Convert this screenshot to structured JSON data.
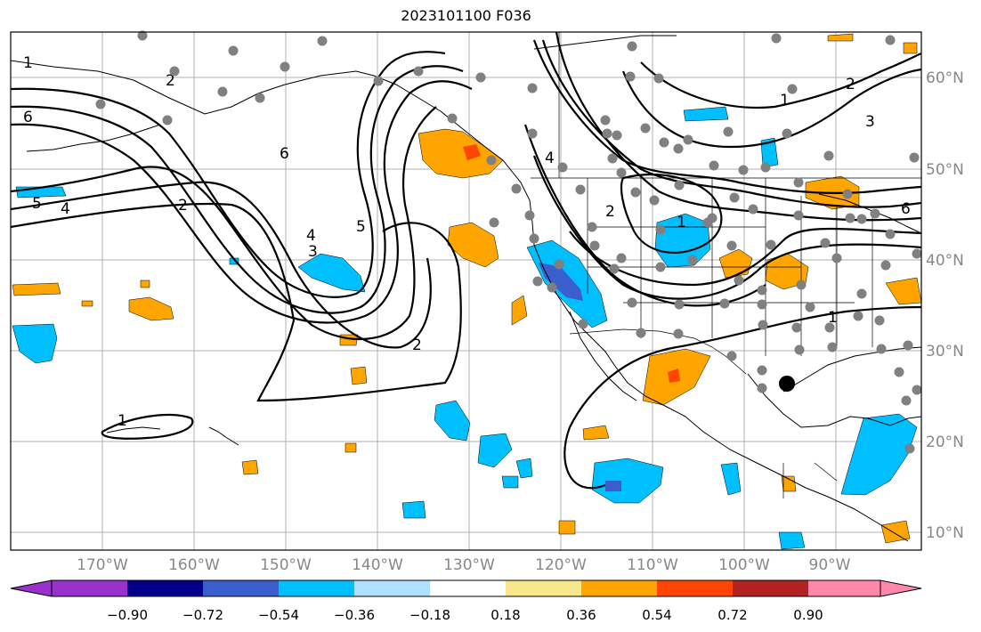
{
  "title": "2023101100 F036",
  "lon_labels": [
    "170°W",
    "160°W",
    "150°W",
    "140°W",
    "130°W",
    "120°W",
    "110°W",
    "100°W",
    "90°W"
  ],
  "lat_labels": [
    "60°N",
    "50°N",
    "40°N",
    "30°N",
    "20°N",
    "10°N"
  ],
  "colorbar": {
    "colors": [
      "#9932cc",
      "#00008b",
      "#3a5fcd",
      "#00bfff",
      "#b0e0ff",
      "#ffffff",
      "#f8e68a",
      "#ffa500",
      "#ff4500",
      "#b22222",
      "#ff88aa"
    ],
    "tick_labels": [
      "−0.90",
      "−0.72",
      "−0.54",
      "−0.36",
      "−0.18",
      "0.18",
      "0.36",
      "0.54",
      "0.72",
      "0.90"
    ]
  },
  "contour_labels": [
    "1",
    "6",
    "5",
    "4",
    "2",
    "6",
    "5",
    "4",
    "3",
    "2",
    "1",
    "1",
    "2",
    "3",
    "4",
    "6",
    "2",
    "1",
    "2",
    "1"
  ],
  "colors": {
    "grid": "#b0b0b0",
    "station": "#808080",
    "marker": "#000000",
    "neg_fill": "#00bfff",
    "neg_deep": "#3a5fcd",
    "pos_fill": "#ffa500",
    "pos_deep": "#ff4500"
  }
}
